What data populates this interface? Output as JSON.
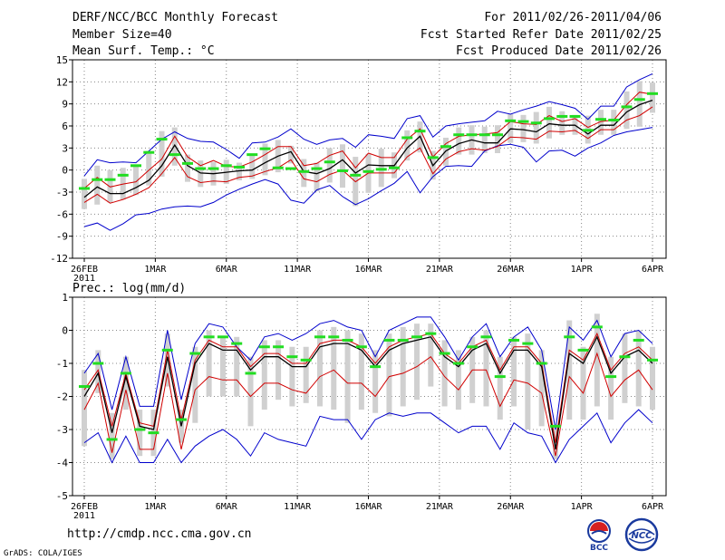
{
  "header": {
    "title": "DERF/NCC/BCC Monthly Forecast",
    "member_size": "Member Size=40",
    "variable": "Mean Surf. Temp.: °C",
    "period": "For 2011/02/26-2011/04/06",
    "started": "Fcst Started Refer Date 2011/02/25",
    "produced": "Fcst Produced Date 2011/02/26"
  },
  "footer": {
    "url": "http://cmdp.ncc.cma.gov.cn",
    "credit": "GrADS: COLA/IGES",
    "logo_bcc": "BCC",
    "logo_ncc": "NCC"
  },
  "colors": {
    "ensemble_mean": "#000000",
    "inner_range": "#d10000",
    "outer_range": "#0000cc",
    "box": "#d0d0d0",
    "median": "#22dd22"
  },
  "chart_data": [
    {
      "type": "line",
      "title": "Mean Surf. Temp.: °C",
      "xlabel": "",
      "ylabel": "",
      "ylim": [
        -12,
        15
      ],
      "yticks": [
        "15",
        "12",
        "9",
        "6",
        "3",
        "0",
        "-3",
        "-6",
        "-9",
        "-12"
      ],
      "xticks": [
        "26FEB",
        "1MAR",
        "6MAR",
        "11MAR",
        "16MAR",
        "21MAR",
        "26MAR",
        "1APR",
        "6APR"
      ],
      "x_year_label": "2011",
      "grid": true,
      "series": [
        {
          "name": "mean",
          "values": [
            -3.7,
            -2.3,
            -3.2,
            -3.2,
            -2.4,
            -1.4,
            0.6,
            3.4,
            0.6,
            -0.4,
            -0.5,
            -0.3,
            -0.1,
            0,
            1,
            1.9,
            2.5,
            -0.2,
            -0.5,
            0.2,
            1.4,
            -0.4,
            0.7,
            0.6,
            0.6,
            3,
            4.6,
            0.6,
            2.6,
            3.6,
            4.1,
            3.7,
            3.7,
            5.6,
            5.5,
            5.2,
            6.3,
            6.1,
            6.1,
            4.9,
            6.1,
            6.1,
            7.9,
            8.9,
            9.5
          ]
        },
        {
          "name": "inner_upper",
          "values": [
            -2.5,
            -1,
            -2.3,
            -1.9,
            -1.6,
            0,
            1.5,
            4.6,
            1.8,
            0.6,
            1.3,
            0.5,
            0.4,
            1.1,
            2.1,
            3.2,
            3.2,
            0.6,
            0.9,
            2,
            2.6,
            0.3,
            2.3,
            1.7,
            1.7,
            4.2,
            5.6,
            1.8,
            3.6,
            4.6,
            4.8,
            4.9,
            5.1,
            6.6,
            6.3,
            6.2,
            7.4,
            6.6,
            7,
            5.8,
            6.6,
            6.8,
            8.9,
            10.6,
            10.3
          ]
        },
        {
          "name": "inner_lower",
          "values": [
            -4.4,
            -3.3,
            -4.5,
            -4,
            -3.3,
            -2.4,
            -0.5,
            1.7,
            -0.9,
            -1.7,
            -1.5,
            -1.6,
            -1,
            -0.8,
            -0.2,
            0.3,
            1.4,
            -1.2,
            -1.6,
            -0.6,
            0,
            -1.6,
            -0.4,
            -0.4,
            -0.4,
            1.8,
            3,
            -0.5,
            1.5,
            2.5,
            2.9,
            2.7,
            3.2,
            4.5,
            4.4,
            4.2,
            5.3,
            5.2,
            5.4,
            4.3,
            5.5,
            5.5,
            6.8,
            7.4,
            8.6
          ]
        },
        {
          "name": "outer_upper",
          "values": [
            -0.8,
            1.4,
            1,
            1.1,
            1,
            2.6,
            4.2,
            5.2,
            4.3,
            3.9,
            3.8,
            2.8,
            1.6,
            3.7,
            3.8,
            4.5,
            5.6,
            4.2,
            3.5,
            4.1,
            4.3,
            3.1,
            4.8,
            4.6,
            4.3,
            7,
            7.4,
            4.5,
            6,
            6.3,
            6.5,
            6.7,
            8,
            7.6,
            8.2,
            8.7,
            9.3,
            8.9,
            8.4,
            6.9,
            8.7,
            8.7,
            11.3,
            12.3,
            13.1
          ]
        },
        {
          "name": "outer_lower",
          "values": [
            -7.7,
            -7.2,
            -8.2,
            -7.3,
            -6.1,
            -5.9,
            -5.3,
            -5,
            -4.9,
            -5,
            -4.4,
            -3.4,
            -2.6,
            -1.9,
            -1.3,
            -1.9,
            -4.1,
            -4.5,
            -2.7,
            -2.1,
            -3.6,
            -4.7,
            -3.9,
            -2.8,
            -1.8,
            -0.2,
            -3.1,
            -0.9,
            0.5,
            0.6,
            0.5,
            2.6,
            3.3,
            3.5,
            3.1,
            1.1,
            2.6,
            2.7,
            1.9,
            3,
            3.7,
            4.7,
            5.2,
            5.5,
            5.8
          ]
        },
        {
          "name": "box_upper",
          "values": [
            -1.2,
            0.6,
            0,
            0.3,
            0.7,
            2.6,
            5.3,
            5.8,
            2.1,
            1.3,
            1.1,
            1.4,
            1,
            2.2,
            3.6,
            4.1,
            3.3,
            1.5,
            1,
            3,
            3.5,
            1.8,
            2.2,
            2.9,
            2.4,
            5.4,
            6.6,
            2.6,
            4.4,
            5.8,
            6.1,
            5.9,
            6.1,
            7.6,
            7.5,
            7.9,
            8.6,
            8,
            7.5,
            7.4,
            8.2,
            8.2,
            10.7,
            12.1,
            11.9
          ]
        },
        {
          "name": "box_lower",
          "values": [
            -5.3,
            -4.7,
            -4.4,
            -4,
            -3.4,
            -2.1,
            -0.9,
            0.6,
            -1.6,
            -2.3,
            -2.1,
            -1.9,
            -1.4,
            -1.2,
            -0.7,
            -0.3,
            0.9,
            -2.3,
            -2.9,
            -1.7,
            -2.4,
            -4.9,
            -3.1,
            -2.3,
            -1.1,
            1.3,
            2.4,
            -1.3,
            0.6,
            2.1,
            2.1,
            2.3,
            2.3,
            3.7,
            3.8,
            3.6,
            4.3,
            4.8,
            4.8,
            3.6,
            4.8,
            4.8,
            5.6,
            5.9,
            7.8
          ]
        },
        {
          "name": "median",
          "values": [
            -2.5,
            -1.3,
            -1.3,
            -0.7,
            0.6,
            2.4,
            4.2,
            2.1,
            0.9,
            0.2,
            0.2,
            0.6,
            0.4,
            2.1,
            2.9,
            0.3,
            0.2,
            -0.2,
            0.2,
            1.1,
            -0.1,
            -0.7,
            -0.2,
            0.1,
            0.3,
            4.4,
            5.3,
            1.7,
            3.2,
            4.8,
            4.8,
            4.8,
            4.8,
            6.7,
            6.6,
            6.4,
            7,
            7.3,
            7.3,
            5.4,
            6.9,
            6.8,
            8.6,
            9.6,
            10.4
          ]
        }
      ]
    },
    {
      "type": "line",
      "title": "Prec.: log(mm/d)",
      "xlabel": "",
      "ylabel": "",
      "ylim": [
        -5,
        1
      ],
      "yticks": [
        "1",
        "0",
        "-1",
        "-2",
        "-3",
        "-4",
        "-5"
      ],
      "xticks": [
        "26FEB",
        "1MAR",
        "6MAR",
        "11MAR",
        "16MAR",
        "21MAR",
        "26MAR",
        "1APR",
        "6APR"
      ],
      "x_year_label": "2011",
      "grid": true,
      "series": [
        {
          "name": "mean",
          "values": [
            -2,
            -1.3,
            -3.1,
            -1.4,
            -2.9,
            -3,
            -0.8,
            -2.9,
            -1,
            -0.4,
            -0.6,
            -0.6,
            -1.2,
            -0.8,
            -0.8,
            -1.1,
            -1.1,
            -0.5,
            -0.4,
            -0.4,
            -0.6,
            -1.1,
            -0.6,
            -0.4,
            -0.3,
            -0.2,
            -0.8,
            -1.1,
            -0.6,
            -0.4,
            -1.3,
            -0.6,
            -0.6,
            -1.1,
            -3.6,
            -0.7,
            -1,
            -0.2,
            -1.3,
            -0.8,
            -0.6,
            -1
          ]
        },
        {
          "name": "inner_upper",
          "values": [
            -1.8,
            -1.2,
            -2.9,
            -1.3,
            -2.8,
            -2.9,
            -0.6,
            -2.7,
            -0.9,
            -0.3,
            -0.5,
            -0.5,
            -1.1,
            -0.7,
            -0.7,
            -1,
            -1,
            -0.4,
            -0.3,
            -0.3,
            -0.5,
            -1,
            -0.5,
            -0.3,
            -0.2,
            -0.1,
            -0.7,
            -1,
            -0.5,
            -0.3,
            -1.2,
            -0.5,
            -0.5,
            -1,
            -3.4,
            -0.6,
            -0.9,
            -0.1,
            -1.2,
            -0.7,
            -0.5,
            -0.9
          ]
        },
        {
          "name": "inner_lower",
          "values": [
            -2.4,
            -1.6,
            -3.7,
            -1.8,
            -3.6,
            -3.6,
            -1.3,
            -3.6,
            -1.8,
            -1.4,
            -1.5,
            -1.5,
            -2,
            -1.6,
            -1.6,
            -1.8,
            -1.9,
            -1.4,
            -1.2,
            -1.6,
            -1.6,
            -2,
            -1.4,
            -1.3,
            -1.1,
            -0.8,
            -1.4,
            -1.8,
            -1.2,
            -1.2,
            -2.3,
            -1.5,
            -1.6,
            -1.9,
            -3.8,
            -1.4,
            -1.9,
            -0.7,
            -2,
            -1.5,
            -1.2,
            -1.8
          ]
        },
        {
          "name": "outer_upper",
          "values": [
            -1.3,
            -0.7,
            -2.4,
            -0.8,
            -2.3,
            -2.3,
            0,
            -2.1,
            -0.4,
            0.2,
            0.1,
            -0.5,
            -0.9,
            -0.2,
            -0.1,
            -0.3,
            -0.1,
            0.2,
            0.3,
            0.1,
            0,
            -0.8,
            0,
            0.2,
            0.4,
            0.4,
            -0.2,
            -0.9,
            -0.2,
            0.2,
            -0.8,
            -0.2,
            0.1,
            -0.6,
            -3,
            0.1,
            -0.3,
            0.3,
            -0.8,
            -0.1,
            0,
            -0.4
          ]
        },
        {
          "name": "outer_lower",
          "values": [
            -3.4,
            -3.1,
            -4,
            -3.2,
            -4,
            -4,
            -3.3,
            -4,
            -3.5,
            -3.2,
            -3,
            -3.3,
            -3.8,
            -3.1,
            -3.3,
            -3.4,
            -3.5,
            -2.6,
            -2.7,
            -2.7,
            -3.3,
            -2.7,
            -2.5,
            -2.6,
            -2.5,
            -2.5,
            -2.8,
            -3.1,
            -2.9,
            -2.9,
            -3.6,
            -2.8,
            -3.1,
            -3.2,
            -4,
            -3.3,
            -2.9,
            -2.5,
            -3.4,
            -2.8,
            -2.4,
            -2.8
          ]
        },
        {
          "name": "box_upper",
          "values": [
            -1.2,
            -0.6,
            -2.5,
            -0.8,
            -2.4,
            -2.4,
            -0.1,
            -2.4,
            -0.5,
            0,
            -0.2,
            -0.2,
            -0.8,
            -0.3,
            -0.3,
            -0.5,
            -0.5,
            0,
            0.1,
            0,
            -0.1,
            -0.6,
            -0.1,
            0.1,
            0.2,
            0.2,
            -0.3,
            -0.6,
            -0.2,
            0,
            -0.8,
            -0.2,
            -0.1,
            -0.6,
            -2.9,
            0.3,
            -0.5,
            0.5,
            -0.8,
            -0.1,
            0,
            -0.5
          ]
        },
        {
          "name": "box_lower",
          "values": [
            -3.5,
            -1.9,
            -3.9,
            -2.4,
            -3.8,
            -3.8,
            -1.7,
            -3.4,
            -2.8,
            -2,
            -2,
            -2,
            -2.9,
            -2.4,
            -2.1,
            -2.3,
            -2.2,
            -2.3,
            -2.4,
            -2.8,
            -2.4,
            -2.5,
            -2.6,
            -2.3,
            -2.1,
            -1.7,
            -2.3,
            -2.4,
            -2.2,
            -2.3,
            -2.7,
            -2.3,
            -3,
            -2.9,
            -3.9,
            -2.7,
            -2.7,
            -2.3,
            -2.7,
            -2.2,
            -2.3,
            -2.4
          ]
        },
        {
          "name": "median",
          "values": [
            -1.7,
            -1,
            -3.3,
            -1.3,
            -3,
            -3.1,
            -0.6,
            -2.7,
            -0.7,
            -0.2,
            -0.2,
            -0.4,
            -1.3,
            -0.5,
            -0.5,
            -0.8,
            -0.9,
            -0.2,
            -0.2,
            -0.3,
            -0.5,
            -1.1,
            -0.3,
            -0.3,
            -0.2,
            -0.1,
            -0.7,
            -1,
            -0.5,
            -0.2,
            -1.4,
            -0.3,
            -0.4,
            -1,
            -2.9,
            -0.2,
            -0.6,
            0.1,
            -1.4,
            -0.8,
            -0.3,
            -0.9
          ]
        }
      ]
    }
  ]
}
